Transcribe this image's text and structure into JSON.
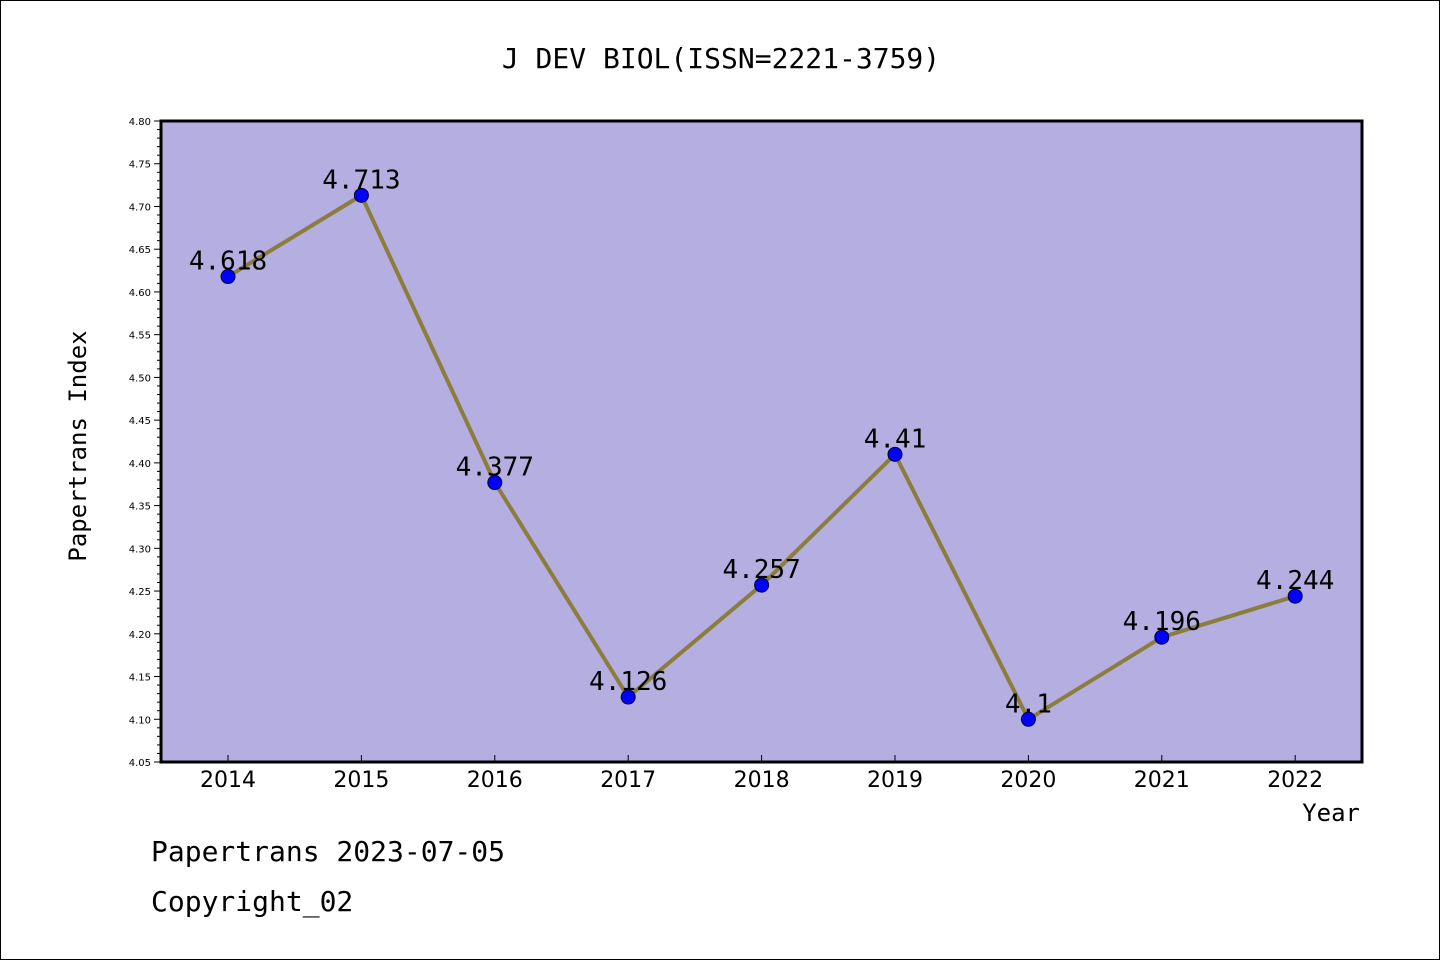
{
  "chart_data": {
    "type": "line",
    "title": "J DEV BIOL(ISSN=2221-3759)",
    "xlabel": "Year",
    "ylabel": "Papertrans Index",
    "categories": [
      "2014",
      "2015",
      "2016",
      "2017",
      "2018",
      "2019",
      "2020",
      "2021",
      "2022"
    ],
    "values": [
      4.618,
      4.713,
      4.377,
      4.126,
      4.257,
      4.41,
      4.1,
      4.196,
      4.244
    ],
    "data_labels": [
      "4.618",
      "4.713",
      "4.377",
      "4.126",
      "4.257",
      "4.41",
      "4.1",
      "4.196",
      "4.244"
    ],
    "ylim": [
      4.05,
      4.8
    ],
    "yticks": [
      "4.05",
      "4.10",
      "4.15",
      "4.20",
      "4.25",
      "4.30",
      "4.35",
      "4.40",
      "4.45",
      "4.50",
      "4.55",
      "4.60",
      "4.65",
      "4.70",
      "4.75",
      "4.80"
    ],
    "grid": false,
    "colors": {
      "plot_background": "#b4aee1",
      "line": "#8b7d3c",
      "marker": "#0000ff"
    }
  },
  "footer": {
    "line1": "Papertrans 2023-07-05",
    "line2": "Copyright_02"
  }
}
